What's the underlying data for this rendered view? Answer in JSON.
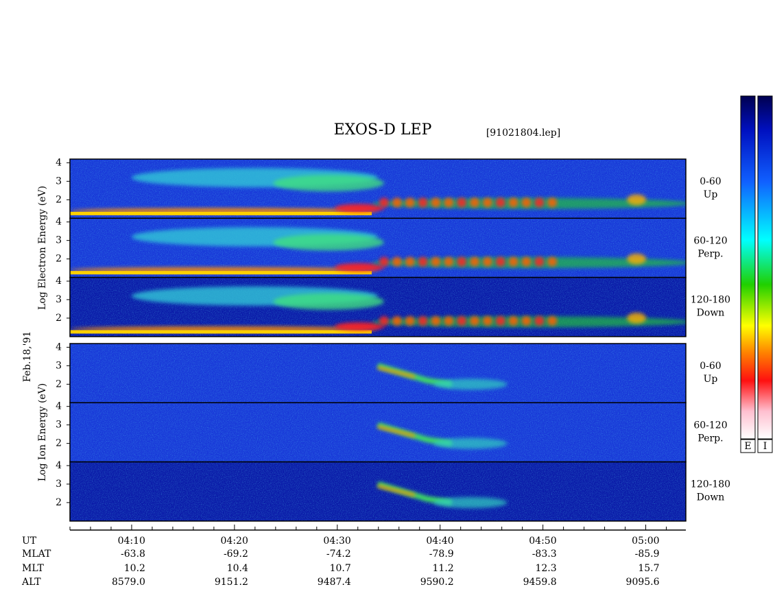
{
  "chart_data": {
    "type": "spectrogram",
    "title": "EXOS-D LEP",
    "subtitle": "[91021804.lep]",
    "date_label": "Feb.18,'91",
    "groups": [
      {
        "ylabel": "Log Electron Energy (eV)",
        "kind": "electron",
        "panels": [
          {
            "label": [
              "0-60",
              "Up"
            ]
          },
          {
            "label": [
              "60-120",
              "Perp."
            ]
          },
          {
            "label": [
              "120-180",
              "Down"
            ]
          }
        ]
      },
      {
        "ylabel": "Log Ion Energy (eV)",
        "kind": "ion",
        "panels": [
          {
            "label": [
              "0-60",
              "Up"
            ]
          },
          {
            "label": [
              "60-120",
              "Perp."
            ]
          },
          {
            "label": [
              "120-180",
              "Down"
            ]
          }
        ]
      }
    ],
    "ylim": [
      1,
      4.2
    ],
    "yticks": [
      4,
      3,
      2
    ],
    "xlim": [
      4,
      63.9
    ],
    "xticks": [
      {
        "value": 10,
        "label": "04:10"
      },
      {
        "value": 20,
        "label": "04:20"
      },
      {
        "value": 30,
        "label": "04:30"
      },
      {
        "value": 40,
        "label": "04:40"
      },
      {
        "value": 50,
        "label": "04:50"
      },
      {
        "value": 60,
        "label": "05:00"
      }
    ],
    "xminorticks": [
      4,
      6,
      8,
      12,
      14,
      16,
      18,
      22,
      24,
      26,
      28,
      32,
      34,
      36,
      38,
      42,
      44,
      46,
      48,
      52,
      54,
      56,
      58,
      62
    ],
    "ephemeris": {
      "labels": [
        "UT",
        "MLAT",
        "MLT",
        "ALT"
      ],
      "rows": [
        [
          "-63.8",
          "-69.2",
          "-74.2",
          "-78.9",
          "-83.3",
          "-85.9"
        ],
        [
          "10.2",
          "10.4",
          "10.7",
          "11.2",
          "12.3",
          "15.7"
        ],
        [
          "8579.0",
          "9151.2",
          "9487.4",
          "9590.2",
          "9459.8",
          "9095.6"
        ]
      ]
    },
    "colorbars": [
      "E",
      "I"
    ]
  }
}
